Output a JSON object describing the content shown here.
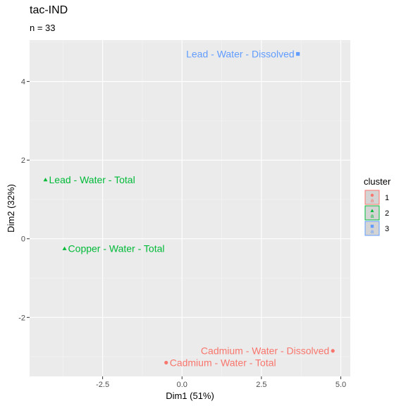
{
  "chart_data": {
    "type": "scatter",
    "title": "tac-IND",
    "subtitle": "n = 33",
    "xlabel": "Dim1 (51%)",
    "ylabel": "Dim2 (32%)",
    "xlim": [
      -4.8,
      5.3
    ],
    "ylim": [
      -3.5,
      5.05
    ],
    "xticks": [
      -2.5,
      0.0,
      2.5,
      5.0
    ],
    "xtick_labels": [
      "-2.5",
      "0.0",
      "2.5",
      "5.0"
    ],
    "yticks": [
      -2,
      0,
      2,
      4
    ],
    "ytick_labels": [
      "-2",
      "0",
      "2",
      "4"
    ],
    "grid": true,
    "legend": {
      "title": "cluster",
      "position": "right"
    },
    "series": [
      {
        "name": "1",
        "color": "#f8766d",
        "shape": "circle",
        "points": [
          {
            "x": -0.5,
            "y": -3.15,
            "label": "Cadmium - Water - Total"
          },
          {
            "x": 4.75,
            "y": -2.85,
            "label": "Cadmium - Water - Dissolved"
          }
        ]
      },
      {
        "name": "2",
        "color": "#00ba38",
        "shape": "triangle",
        "points": [
          {
            "x": -4.3,
            "y": 1.5,
            "label": "Lead - Water - Total"
          },
          {
            "x": -3.7,
            "y": -0.25,
            "label": "Copper - Water - Total"
          }
        ]
      },
      {
        "name": "3",
        "color": "#619cff",
        "shape": "square",
        "points": [
          {
            "x": 3.65,
            "y": 4.7,
            "label": "Lead - Water - Dissolved"
          }
        ]
      }
    ]
  }
}
